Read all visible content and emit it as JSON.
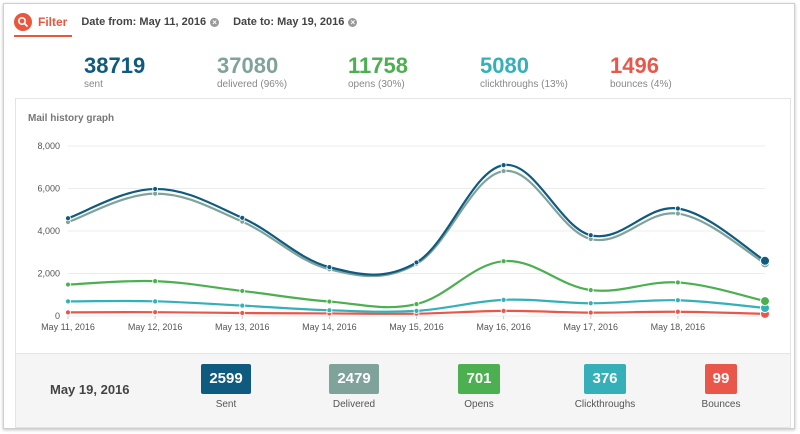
{
  "filter": {
    "label": "Filter",
    "date_from": "Date from: May 11, 2016",
    "date_to": "Date to: May 19, 2016"
  },
  "stats": [
    {
      "value": "38719",
      "label": "sent",
      "color": "#0f5a7f"
    },
    {
      "value": "37080",
      "label": "delivered (96%)",
      "color": "#7fa39b"
    },
    {
      "value": "11758",
      "label": "opens (30%)",
      "color": "#4caf50"
    },
    {
      "value": "5080",
      "label": "clickthroughs (13%)",
      "color": "#35b0b8"
    },
    {
      "value": "1496",
      "label": "bounces (4%)",
      "color": "#e9574a"
    }
  ],
  "graph_title": "Mail history graph",
  "chart_data": {
    "type": "line",
    "title": "Mail history graph",
    "categories": [
      "May 11, 2016",
      "May 12, 2016",
      "May 13, 2016",
      "May 14, 2016",
      "May 15, 2016",
      "May 16, 2016",
      "May 17, 2016",
      "May 18, 2016",
      "May 19, 2016"
    ],
    "ylim": [
      0,
      8000
    ],
    "yticks": [
      0,
      2000,
      4000,
      6000,
      8000
    ],
    "ytick_labels": [
      "0",
      "2,000",
      "4,000",
      "6,000",
      "8,000"
    ],
    "grid": true,
    "series": [
      {
        "key": "sent",
        "color": "#0f5a7f",
        "values": [
          4600,
          5980,
          4620,
          2300,
          2520,
          7100,
          3800,
          5060,
          2599
        ]
      },
      {
        "key": "delivered",
        "color": "#7fa39b",
        "values": [
          4420,
          5760,
          4440,
          2200,
          2450,
          6820,
          3620,
          4820,
          2479
        ]
      },
      {
        "key": "opens",
        "color": "#4caf50",
        "values": [
          1480,
          1640,
          1180,
          680,
          560,
          2580,
          1220,
          1580,
          701
        ]
      },
      {
        "key": "clickthroughs",
        "color": "#35b0b8",
        "values": [
          690,
          690,
          490,
          270,
          240,
          760,
          600,
          740,
          376
        ]
      },
      {
        "key": "bounces",
        "color": "#e9574a",
        "values": [
          170,
          180,
          140,
          120,
          110,
          240,
          160,
          200,
          99
        ]
      }
    ]
  },
  "summary": {
    "date": "May 19, 2016",
    "items": [
      {
        "value": "2599",
        "label": "Sent",
        "color": "#0f5a7f"
      },
      {
        "value": "2479",
        "label": "Delivered",
        "color": "#7fa39b"
      },
      {
        "value": "701",
        "label": "Opens",
        "color": "#4caf50"
      },
      {
        "value": "376",
        "label": "Clickthroughs",
        "color": "#35b0b8"
      },
      {
        "value": "99",
        "label": "Bounces",
        "color": "#e9574a"
      }
    ]
  }
}
